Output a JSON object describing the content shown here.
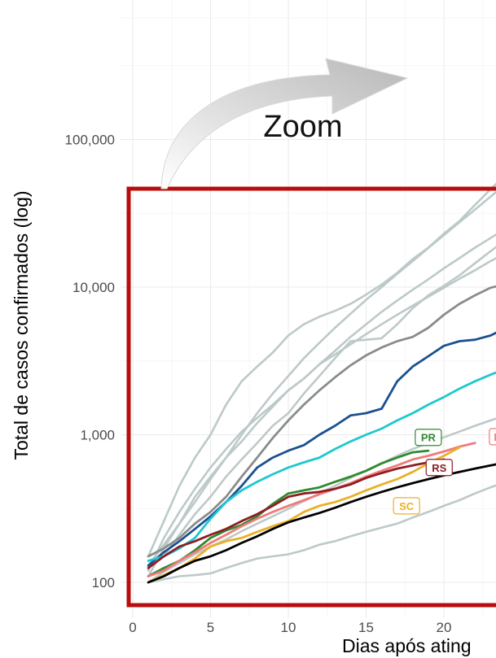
{
  "chart_data": {
    "type": "line",
    "xlabel": "Dias após ating",
    "ylabel": "Total de casos confirmados (log)",
    "y_scale": "log",
    "xlim": [
      0,
      24
    ],
    "ylim": [
      75,
      500000
    ],
    "x_ticks": [
      0,
      5,
      10,
      15,
      20
    ],
    "x_tick_labels": [
      "0",
      "5",
      "10",
      "15",
      "20"
    ],
    "y_ticks": [
      100,
      1000,
      10000,
      100000
    ],
    "y_tick_labels": [
      "100",
      "1,000",
      "10,000",
      "100,000"
    ],
    "grid": true,
    "annotation": "Zoom",
    "colors": {
      "background_lines": "#bdc9c9",
      "gray": "#8a8c8c",
      "blue": "#1a5190",
      "cyan": "#1ec8cf",
      "PR": "#2f8a2f",
      "MG": "#f07a7a",
      "RS": "#8e1d24",
      "SC": "#eab028",
      "black": "#000000",
      "zoom_box": "#b80d0d"
    },
    "series": [
      {
        "color": "#bdc9c9",
        "x": [
          1,
          2,
          3,
          4,
          5,
          6,
          7,
          8,
          9,
          10,
          11,
          12,
          13,
          14,
          15,
          16,
          17,
          18,
          19,
          20,
          21,
          22,
          23,
          24
        ],
        "y": [
          150,
          260,
          450,
          700,
          1000,
          1600,
          2300,
          2900,
          3600,
          4700,
          5600,
          6300,
          6900,
          7700,
          8900,
          10400,
          12500,
          15500,
          18500,
          23000,
          28000,
          36000,
          46000,
          58000
        ]
      },
      {
        "color": "#bdc9c9",
        "x": [
          1,
          2,
          3,
          4,
          5,
          6,
          7,
          8,
          9,
          10,
          11,
          12,
          13,
          14,
          15,
          16,
          17,
          18,
          19,
          20,
          21,
          22,
          23,
          24
        ],
        "y": [
          130,
          180,
          250,
          350,
          500,
          700,
          1000,
          1400,
          1900,
          2500,
          3300,
          4200,
          5300,
          6600,
          8200,
          10000,
          12300,
          15000,
          18400,
          22500,
          27500,
          33500,
          41000,
          50000
        ]
      },
      {
        "color": "#bdc9c9",
        "x": [
          1,
          2,
          3,
          4,
          5,
          6,
          7,
          8,
          9,
          10,
          11,
          12,
          13,
          14,
          15,
          16,
          17,
          18,
          19,
          20,
          21,
          22,
          23,
          24
        ],
        "y": [
          120,
          200,
          300,
          430,
          600,
          800,
          1050,
          1300,
          1600,
          2000,
          2400,
          3000,
          3700,
          4600,
          5600,
          6800,
          8100,
          9600,
          11300,
          13400,
          15700,
          18500,
          21500,
          25000
        ]
      },
      {
        "color": "#bdc9c9",
        "x": [
          1,
          2,
          3,
          4,
          5,
          6,
          7,
          8,
          9,
          10,
          11,
          12,
          13,
          14,
          15,
          16,
          17,
          18,
          19,
          20,
          21,
          22,
          23,
          24
        ],
        "y": [
          140,
          150,
          210,
          290,
          380,
          520,
          680,
          880,
          1150,
          1400,
          1900,
          2500,
          3300,
          4300,
          4400,
          4500,
          5600,
          7200,
          8800,
          10200,
          12000,
          14500,
          17500,
          21000
        ]
      },
      {
        "color": "#bdc9c9",
        "x": [
          1,
          2,
          3,
          4,
          5,
          6,
          7,
          8,
          9,
          10,
          11,
          12,
          13,
          14,
          15,
          16,
          17,
          18,
          19,
          20,
          21,
          22,
          23,
          24
        ],
        "y": [
          110,
          170,
          250,
          380,
          520,
          700,
          900,
          1200,
          1550,
          2000,
          2400,
          3000,
          3500,
          4100,
          4800,
          5600,
          6500,
          7500,
          8600,
          9900,
          11400,
          13000,
          15000,
          17000
        ]
      },
      {
        "color": "#bdc9c9",
        "x": [
          1,
          2,
          3,
          4,
          5,
          6,
          7,
          8,
          9,
          10,
          11,
          12,
          13,
          14,
          15,
          16,
          17,
          18,
          19,
          20,
          21,
          22,
          23,
          24
        ],
        "y": [
          100,
          118,
          135,
          155,
          175,
          195,
          222,
          250,
          280,
          315,
          355,
          400,
          450,
          510,
          570,
          640,
          720,
          800,
          880,
          960,
          1050,
          1150,
          1250,
          1350
        ]
      },
      {
        "color": "#bdc9c9",
        "x": [
          1,
          2,
          3,
          4,
          5,
          6,
          7,
          8,
          9,
          10,
          11,
          12,
          13,
          14,
          15,
          16,
          17,
          18,
          19,
          20,
          21,
          22,
          23,
          24
        ],
        "y": [
          100,
          105,
          110,
          112,
          115,
          125,
          135,
          145,
          150,
          155,
          165,
          180,
          190,
          205,
          220,
          235,
          250,
          275,
          300,
          330,
          360,
          400,
          440,
          480
        ]
      },
      {
        "color": "#8a8c8c",
        "x": [
          1,
          2,
          3,
          4,
          5,
          6,
          7,
          8,
          9,
          10,
          11,
          12,
          13,
          14,
          15,
          16,
          17,
          18,
          19,
          20,
          21,
          22,
          23,
          24
        ],
        "y": [
          150,
          170,
          200,
          250,
          300,
          380,
          520,
          700,
          950,
          1250,
          1600,
          2000,
          2450,
          2950,
          3450,
          3900,
          4300,
          4600,
          5300,
          6500,
          7700,
          8800,
          9900,
          10500
        ]
      },
      {
        "color": "#1a5190",
        "x": [
          1,
          2,
          3,
          4,
          5,
          6,
          7,
          8,
          9,
          10,
          11,
          12,
          13,
          14,
          15,
          16,
          17,
          18,
          19,
          20,
          21,
          22,
          23,
          24
        ],
        "y": [
          130,
          160,
          190,
          230,
          280,
          350,
          450,
          600,
          700,
          780,
          850,
          1000,
          1150,
          1350,
          1400,
          1500,
          2300,
          2900,
          3400,
          4000,
          4300,
          4400,
          4700,
          5300
        ]
      },
      {
        "color": "#1ec8cf",
        "x": [
          1,
          2,
          3,
          4,
          5,
          6,
          7,
          8,
          9,
          10,
          11,
          12,
          13,
          14,
          15,
          16,
          17,
          18,
          19,
          20,
          21,
          22,
          23,
          24
        ],
        "y": [
          140,
          150,
          170,
          200,
          270,
          350,
          420,
          480,
          540,
          600,
          650,
          700,
          800,
          900,
          1000,
          1100,
          1250,
          1400,
          1600,
          1800,
          2050,
          2300,
          2550,
          2800
        ]
      },
      {
        "name": "PR",
        "color": "#2f8a2f",
        "x": [
          1,
          2,
          3,
          4,
          5,
          6,
          7,
          8,
          9,
          10,
          11,
          12,
          13,
          14,
          15,
          16,
          17,
          18,
          19
        ],
        "y": [
          110,
          125,
          140,
          165,
          200,
          225,
          245,
          280,
          340,
          400,
          420,
          440,
          480,
          520,
          570,
          640,
          700,
          760,
          780
        ]
      },
      {
        "name": "MG",
        "color": "#f07a7a",
        "x": [
          1,
          2,
          3,
          4,
          5,
          6,
          7,
          8,
          9,
          10,
          11,
          12,
          13,
          14,
          15,
          16,
          17,
          18,
          19,
          20,
          21,
          22
        ],
        "y": [
          110,
          120,
          140,
          160,
          185,
          210,
          240,
          270,
          300,
          330,
          360,
          395,
          430,
          470,
          520,
          570,
          620,
          680,
          720,
          770,
          830,
          880
        ]
      },
      {
        "name": "RS",
        "color": "#8e1d24",
        "x": [
          1,
          2,
          3,
          4,
          5,
          6,
          7,
          8,
          9,
          10,
          11,
          12,
          13,
          14,
          15,
          16,
          17,
          18,
          19,
          20
        ],
        "y": [
          125,
          150,
          175,
          190,
          210,
          230,
          260,
          290,
          330,
          380,
          400,
          410,
          430,
          460,
          510,
          550,
          590,
          620,
          650,
          680
        ]
      },
      {
        "name": "SC",
        "color": "#eab028",
        "x": [
          1,
          2,
          3,
          4,
          5,
          6,
          7,
          8,
          9,
          10,
          11,
          12,
          13,
          14,
          15,
          16,
          17,
          18,
          19,
          20,
          21
        ],
        "y": [
          100,
          112,
          125,
          145,
          175,
          190,
          200,
          220,
          240,
          260,
          300,
          330,
          350,
          380,
          420,
          460,
          500,
          560,
          640,
          720,
          820
        ]
      },
      {
        "color": "#000000",
        "x": [
          1,
          2,
          3,
          4,
          5,
          6,
          7,
          8,
          9,
          10,
          11,
          12,
          13,
          14,
          15,
          16,
          17,
          18,
          19,
          20,
          21,
          22,
          23,
          24
        ],
        "y": [
          100,
          110,
          125,
          140,
          150,
          165,
          185,
          205,
          230,
          255,
          275,
          295,
          320,
          350,
          380,
          410,
          440,
          470,
          500,
          530,
          560,
          590,
          620,
          650
        ]
      }
    ],
    "labels": [
      {
        "text": "PR",
        "color": "#2f8a2f",
        "x": 19,
        "y": 960
      },
      {
        "text": "M",
        "color": "#f07a7a",
        "x": 23.5,
        "y": 970
      },
      {
        "text": "RS",
        "color": "#8e1d24",
        "x": 19.7,
        "y": 600
      },
      {
        "text": "SC",
        "color": "#eab028",
        "x": 17.6,
        "y": 330
      },
      {
        "text": "",
        "color": "#555555",
        "x": 24,
        "y": 560
      },
      {
        "text": "",
        "color": "#1ec8cf",
        "x": 24,
        "y": 3300
      }
    ]
  }
}
